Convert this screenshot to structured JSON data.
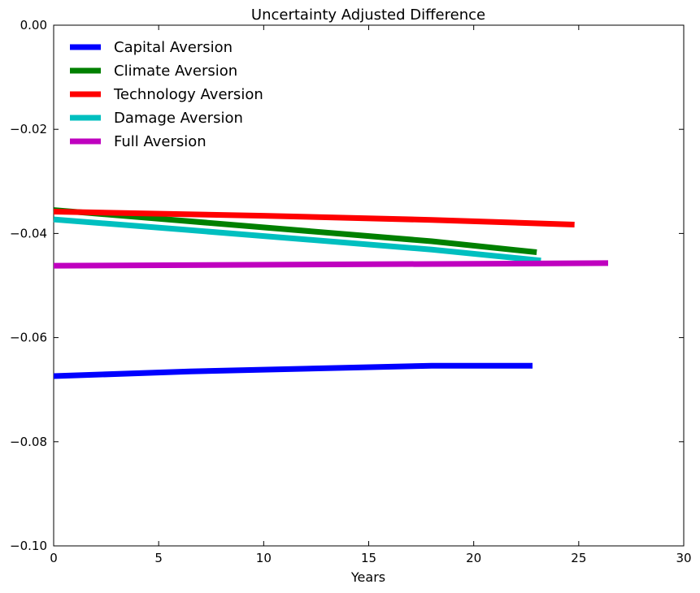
{
  "chart_data": {
    "type": "line",
    "title": "Uncertainty Adjusted Difference",
    "xlabel": "Years",
    "ylabel": "",
    "xlim": [
      0,
      30
    ],
    "ylim": [
      -0.1,
      0.0
    ],
    "xticks": [
      0,
      5,
      10,
      15,
      20,
      25,
      30
    ],
    "xtick_labels": [
      "0",
      "5",
      "10",
      "15",
      "20",
      "25",
      "30"
    ],
    "yticks": [
      0.0,
      -0.02,
      -0.04,
      -0.06,
      -0.08,
      -0.1
    ],
    "ytick_labels": [
      "0.00",
      "−0.02",
      "−0.04",
      "−0.06",
      "−0.08",
      "−0.10"
    ],
    "grid": false,
    "legend_position": "top-left",
    "series": [
      {
        "name": "Capital Aversion",
        "color": "#0000ff",
        "x": [
          0,
          6.5,
          18,
          22.8
        ],
        "y": [
          -0.0674,
          -0.0665,
          -0.0654,
          -0.0654
        ]
      },
      {
        "name": "Climate Aversion",
        "color": "#008000",
        "x": [
          0,
          6,
          18,
          23.0
        ],
        "y": [
          -0.0355,
          -0.0375,
          -0.0415,
          -0.0436
        ]
      },
      {
        "name": "Technology Aversion",
        "color": "#ff0000",
        "x": [
          0,
          10,
          18,
          24.8
        ],
        "y": [
          -0.0358,
          -0.0366,
          -0.0374,
          -0.0383
        ]
      },
      {
        "name": "Damage Aversion",
        "color": "#00bfbf",
        "x": [
          0,
          6,
          18,
          23.2
        ],
        "y": [
          -0.0373,
          -0.0392,
          -0.0431,
          -0.0452
        ]
      },
      {
        "name": "Full Aversion",
        "color": "#bf00bf",
        "x": [
          0,
          26.4
        ],
        "y": [
          -0.0462,
          -0.0457
        ]
      }
    ]
  }
}
